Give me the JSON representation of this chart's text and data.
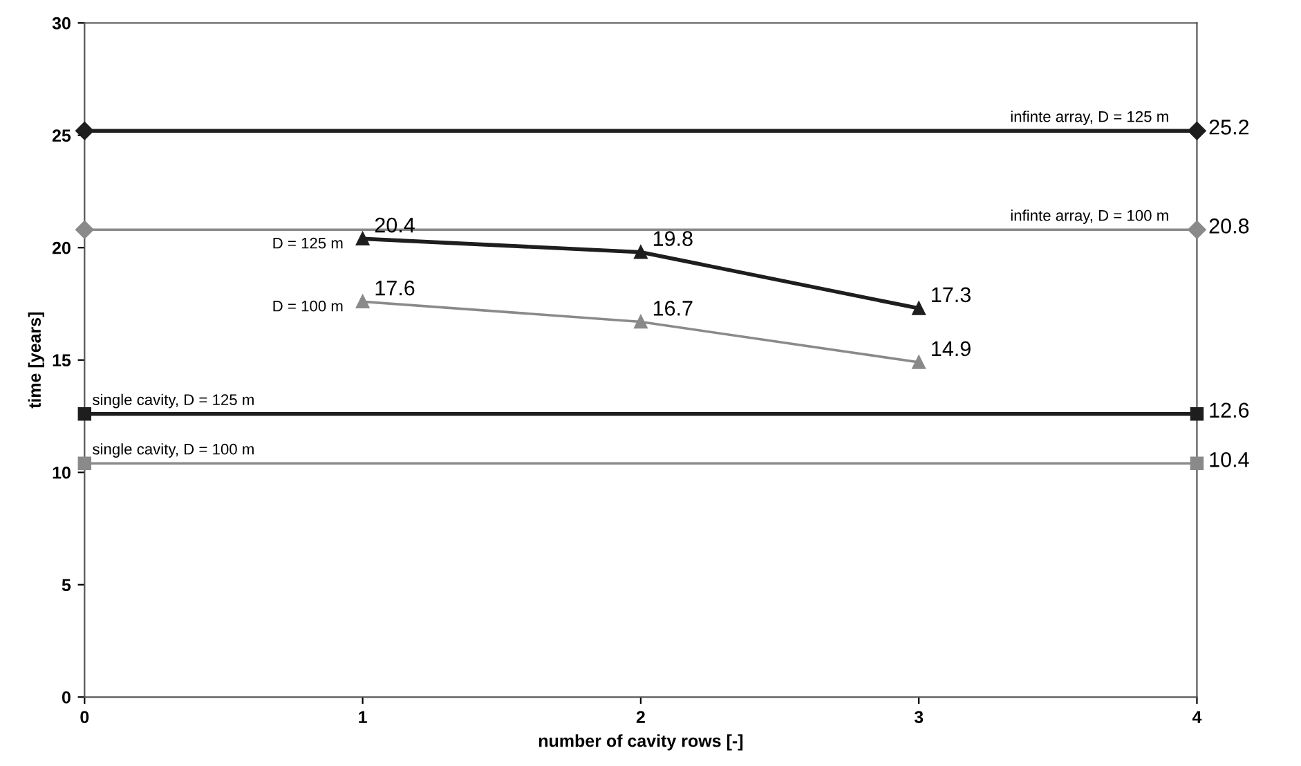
{
  "chart_data": {
    "type": "line",
    "xlabel": "number of cavity rows [-]",
    "ylabel": "time [years]",
    "xlim": [
      0,
      4
    ],
    "xticks": [
      0,
      1,
      2,
      3,
      4
    ],
    "ylim": [
      0,
      30
    ],
    "yticks": [
      0,
      5,
      10,
      15,
      20,
      25,
      30
    ],
    "grid": false,
    "series": [
      {
        "x": [
          0,
          4
        ],
        "values": [
          25.2,
          25.2
        ],
        "color": "#1e1e1e",
        "marker": "diamond",
        "value_labels": [
          null,
          "25.2"
        ]
      },
      {
        "x": [
          0,
          4
        ],
        "values": [
          20.8,
          20.8
        ],
        "color": "#8a8a8a",
        "marker": "diamond",
        "value_labels": [
          null,
          "20.8"
        ]
      },
      {
        "x": [
          1,
          2,
          3
        ],
        "values": [
          20.4,
          19.8,
          17.3
        ],
        "color": "#1e1e1e",
        "marker": "triangle",
        "value_labels": [
          "20.4",
          "19.8",
          "17.3"
        ]
      },
      {
        "x": [
          1,
          2,
          3
        ],
        "values": [
          17.6,
          16.7,
          14.9
        ],
        "color": "#8a8a8a",
        "marker": "triangle",
        "value_labels": [
          "17.6",
          "16.7",
          "14.9"
        ]
      },
      {
        "x": [
          0,
          4
        ],
        "values": [
          12.6,
          12.6
        ],
        "color": "#1e1e1e",
        "marker": "square",
        "value_labels": [
          null,
          "12.6"
        ]
      },
      {
        "x": [
          0,
          4
        ],
        "values": [
          10.4,
          10.4
        ],
        "color": "#8a8a8a",
        "marker": "square",
        "value_labels": [
          null,
          "10.4"
        ]
      }
    ],
    "annotations": [
      {
        "text": "infinte array, D = 125 m",
        "x": 3.9,
        "y": 25.2
      },
      {
        "text": "infinte array, D = 100 m",
        "x": 3.9,
        "y": 20.8
      },
      {
        "text": "D = 125 m",
        "x": 1,
        "y": 20.4
      },
      {
        "text": "D = 100 m",
        "x": 1,
        "y": 17.6
      },
      {
        "text": "single cavity, D = 125 m",
        "x": 0,
        "y": 12.6
      },
      {
        "text": "single cavity, D = 100 m",
        "x": 0,
        "y": 10.4
      }
    ]
  }
}
